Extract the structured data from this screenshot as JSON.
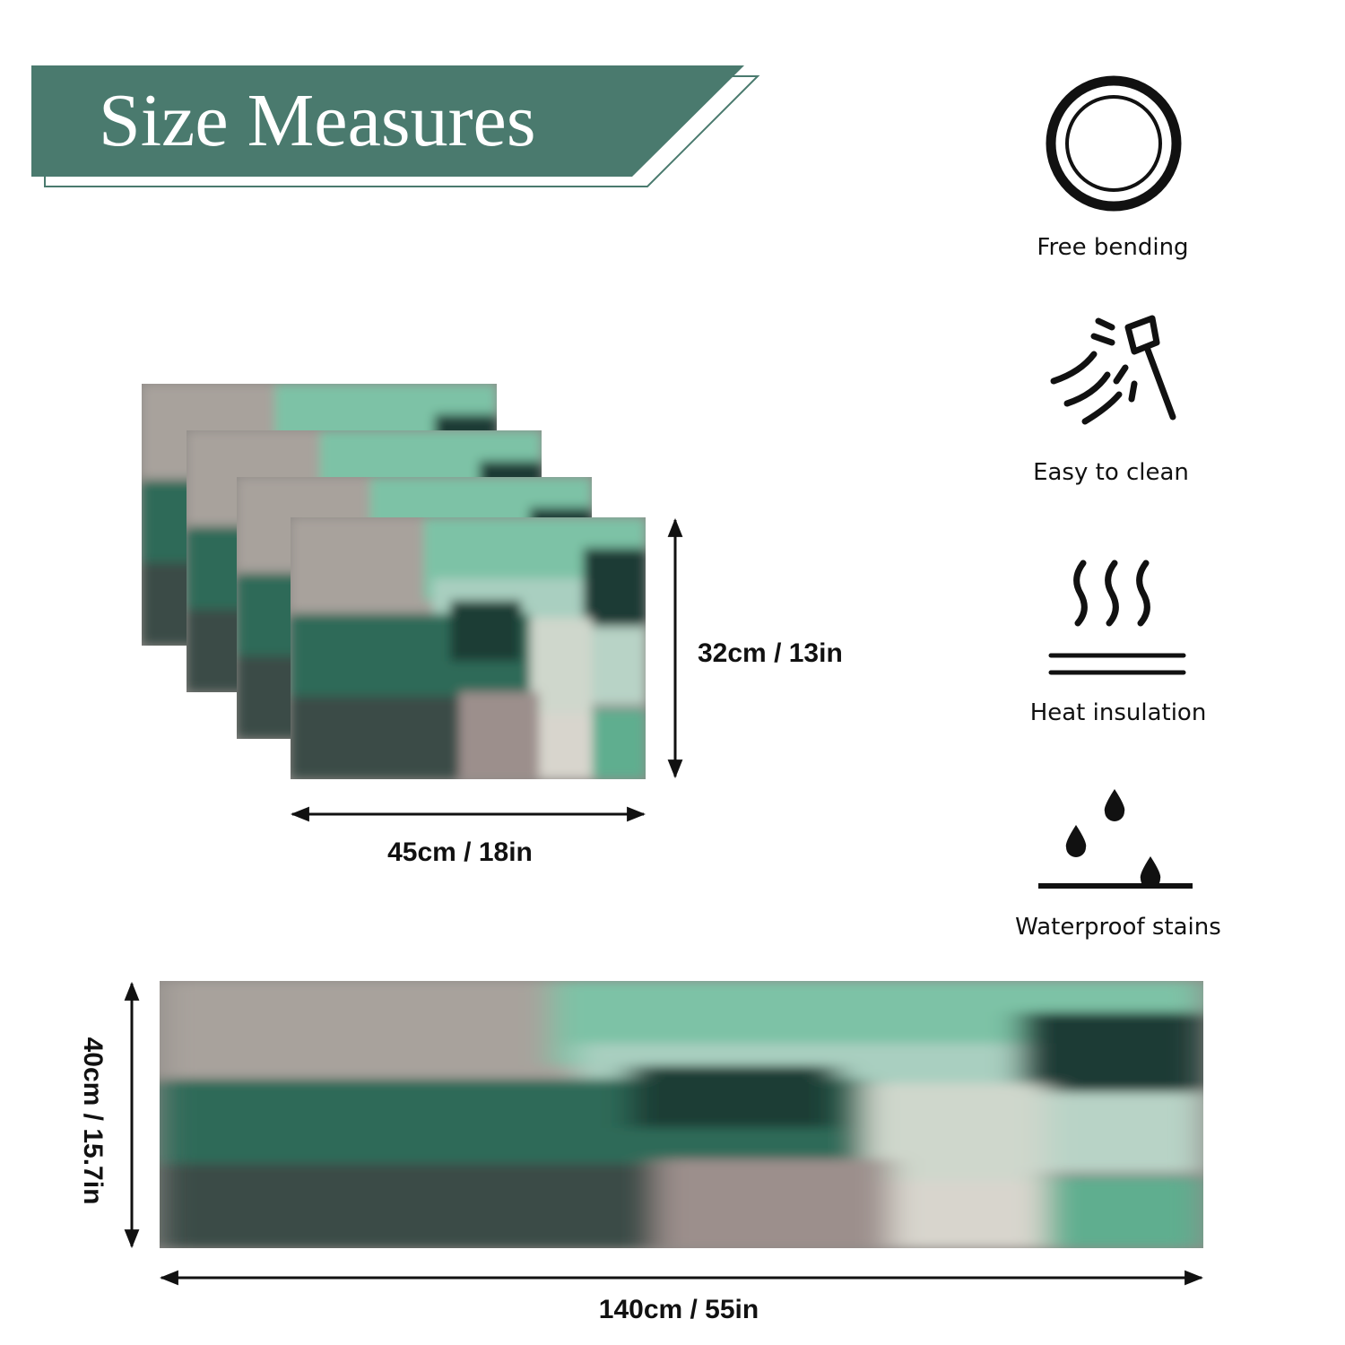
{
  "header": {
    "title": "Size Measures"
  },
  "features": [
    {
      "label": "Free bending"
    },
    {
      "label": "Easy to clean"
    },
    {
      "label": "Heat insulation"
    },
    {
      "label": "Waterproof stains"
    }
  ],
  "placemat": {
    "height": "32cm / 13in",
    "width": "45cm / 18in"
  },
  "runner": {
    "height": "40cm / 15.7in",
    "width": "140cm / 55in"
  }
}
